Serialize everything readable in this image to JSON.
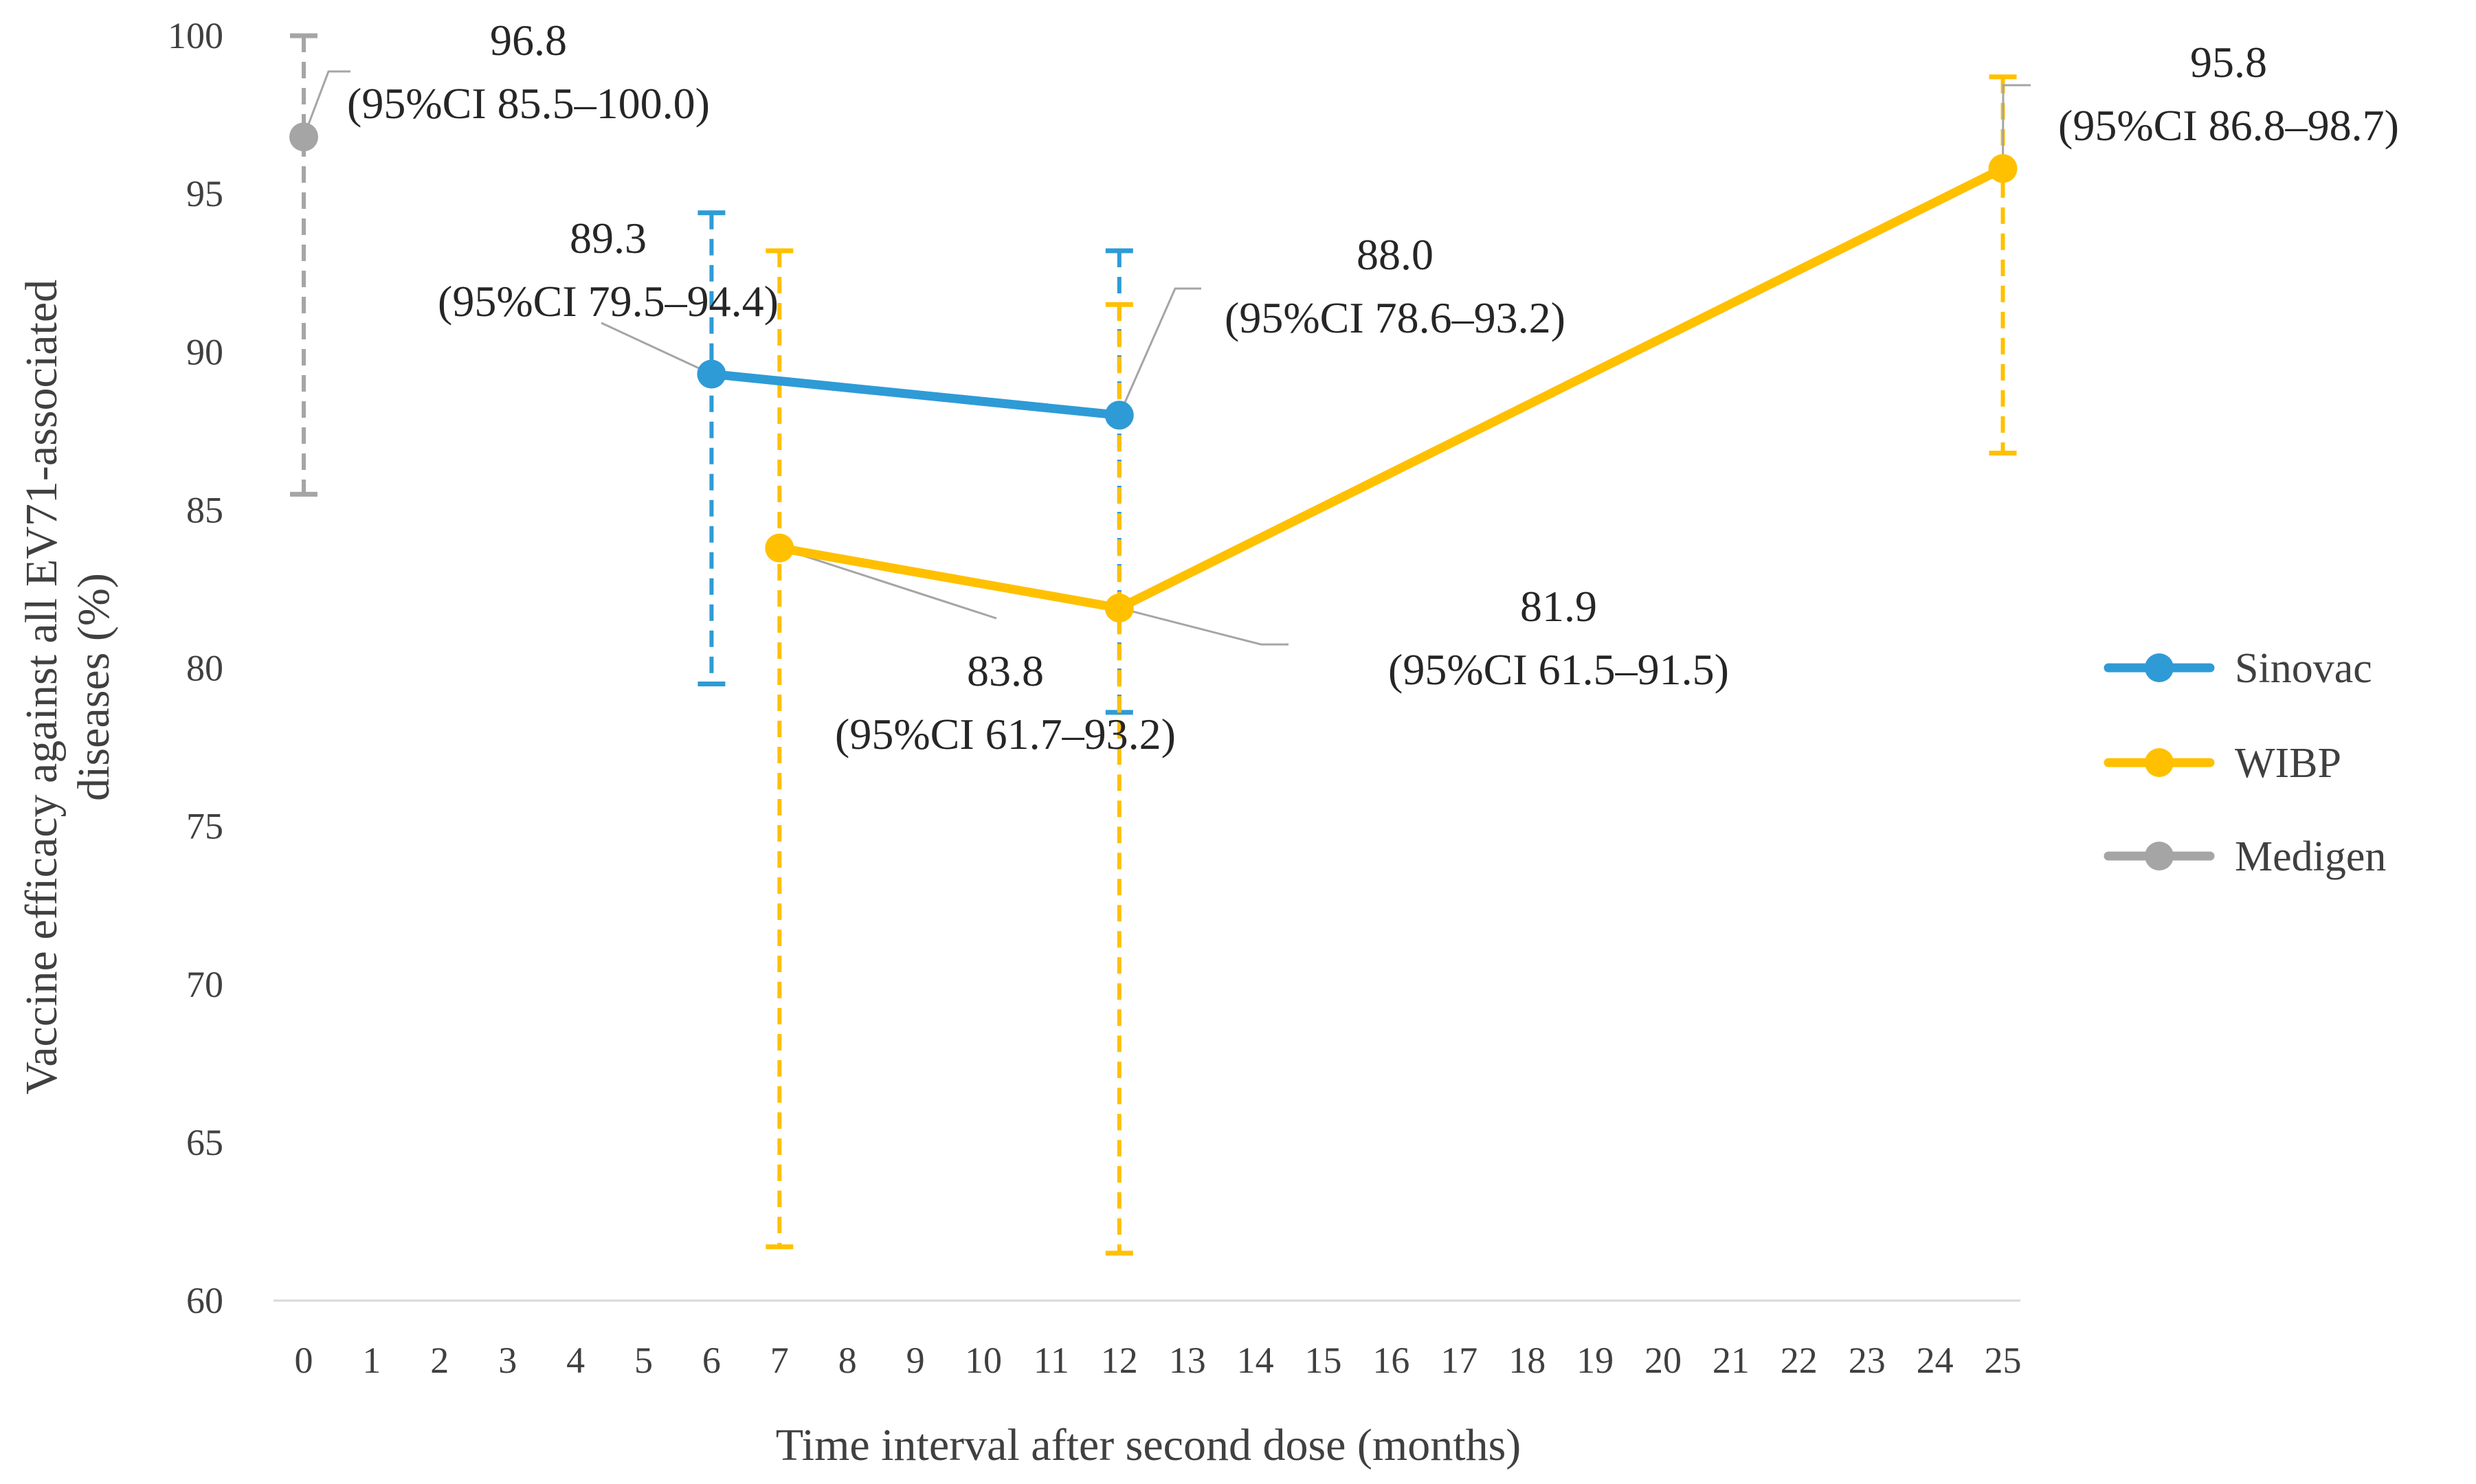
{
  "chart_data": {
    "type": "line",
    "xlabel": "Time interval after second dose (months)",
    "ylabel_lines": [
      "Vaccine efficacy against all EV71-associated",
      "diseases (%)"
    ],
    "x_ticks": [
      0,
      1,
      2,
      3,
      4,
      5,
      6,
      7,
      8,
      9,
      10,
      11,
      12,
      13,
      14,
      15,
      16,
      17,
      18,
      19,
      20,
      21,
      22,
      23,
      24,
      25
    ],
    "x_tick_labels": [
      "0",
      "1",
      "2",
      "3",
      "4",
      "5",
      "6",
      "7",
      "8",
      "9",
      "10",
      "11",
      "12",
      "13",
      "14",
      "15",
      "16",
      "17",
      "18",
      "19",
      "20",
      "21",
      "22",
      "23",
      "24",
      "25"
    ],
    "y_ticks": [
      60,
      65,
      70,
      75,
      80,
      85,
      90,
      95,
      100
    ],
    "y_tick_labels": [
      "60",
      "65",
      "70",
      "75",
      "80",
      "85",
      "90",
      "95",
      "100"
    ],
    "ylim": [
      60,
      100
    ],
    "grid": false,
    "legend_position": "right",
    "series": [
      {
        "name": "Sinovac",
        "color": "#2E9BD6",
        "points": [
          {
            "x": 6,
            "y": 89.3,
            "ci": [
              79.5,
              94.4
            ]
          },
          {
            "x": 12,
            "y": 88.0,
            "ci": [
              78.6,
              93.2
            ]
          }
        ]
      },
      {
        "name": "WIBP",
        "color": "#FFC000",
        "points": [
          {
            "x": 7,
            "y": 83.8,
            "ci": [
              61.7,
              93.2
            ]
          },
          {
            "x": 12,
            "y": 81.9,
            "ci": [
              61.5,
              91.5
            ]
          },
          {
            "x": 25,
            "y": 95.8,
            "ci": [
              86.8,
              98.7
            ]
          }
        ]
      },
      {
        "name": "Medigen",
        "color": "#A5A5A5",
        "points": [
          {
            "x": 0,
            "y": 96.8,
            "ci": [
              85.5,
              100.0
            ]
          }
        ]
      }
    ],
    "annotations": [
      {
        "value": "96.8",
        "ci_text": "(95%CI 85.5–100.0)",
        "series": "Medigen",
        "x": 0
      },
      {
        "value": "89.3",
        "ci_text": "(95%CI 79.5–94.4)",
        "series": "Sinovac",
        "x": 6
      },
      {
        "value": "88.0",
        "ci_text": "(95%CI 78.6–93.2)",
        "series": "Sinovac",
        "x": 12
      },
      {
        "value": "83.8",
        "ci_text": "(95%CI 61.7–93.2)",
        "series": "WIBP",
        "x": 7
      },
      {
        "value": "81.9",
        "ci_text": "(95%CI 61.5–91.5)",
        "series": "WIBP",
        "x": 12
      },
      {
        "value": "95.8",
        "ci_text": "(95%CI 86.8–98.7)",
        "series": "WIBP",
        "x": 25
      }
    ],
    "leader_line_color": "#A5A5A5"
  }
}
